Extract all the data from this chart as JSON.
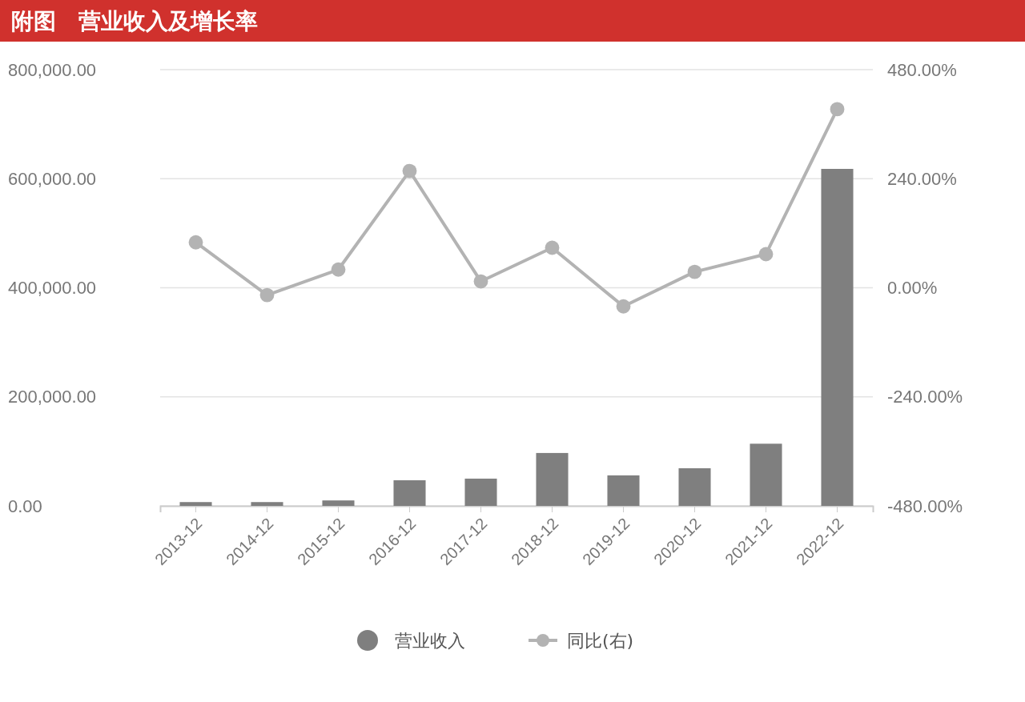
{
  "chart_data": {
    "type": "bar",
    "title": "附图　营业收入及增长率",
    "categories": [
      "2013-12",
      "2014-12",
      "2015-12",
      "2016-12",
      "2017-12",
      "2018-12",
      "2019-12",
      "2020-12",
      "2021-12",
      "2022-12"
    ],
    "series": [
      {
        "name": "营业收入",
        "color": "#7f7f7f",
        "values": [
          7000,
          7000,
          10000,
          47000,
          50000,
          97000,
          56000,
          69000,
          114000,
          618000
        ]
      },
      {
        "name": "同比(右)",
        "type": "line",
        "axis": "y2",
        "color": "#b3b3b3",
        "values": [
          100,
          -16,
          40,
          257,
          14,
          88,
          -41,
          35,
          74,
          393
        ]
      }
    ],
    "ylim": [
      0,
      800000
    ],
    "yticks": [
      {
        "value": 0,
        "label": "0.00"
      },
      {
        "value": 200000,
        "label": "200,000.00"
      },
      {
        "value": 400000,
        "label": "400,000.00"
      },
      {
        "value": 600000,
        "label": "600,000.00"
      },
      {
        "value": 800000,
        "label": "800,000.00"
      }
    ],
    "y2lim": [
      -480,
      480
    ],
    "y2ticks": [
      {
        "value": -480,
        "label": "-480.00%"
      },
      {
        "value": -240,
        "label": "-240.00%"
      },
      {
        "value": 0,
        "label": "0.00%"
      },
      {
        "value": 240,
        "label": "240.00%"
      },
      {
        "value": 480,
        "label": "480.00%"
      }
    ],
    "grid": "y",
    "legend": "bottom",
    "marker": "circle",
    "line_style": "solid"
  }
}
